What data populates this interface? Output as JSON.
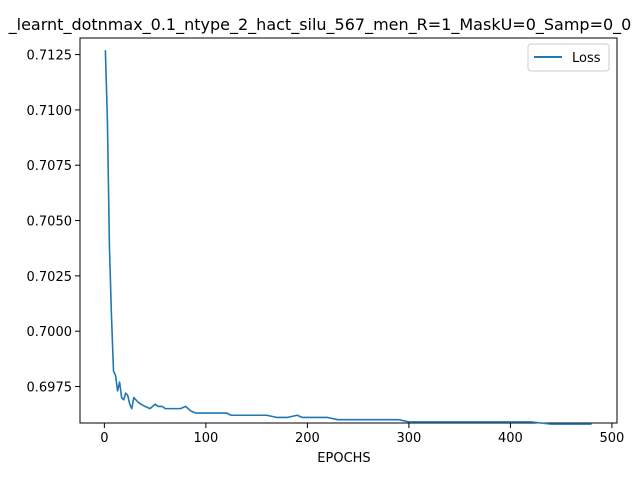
{
  "chart_data": {
    "type": "line",
    "title": "_learnt_dotnmax_0.1_ntype_2_hact_silu_567_men_R=1_MaskU=0_Samp=0_0",
    "xlabel": "EPOCHS",
    "ylabel": "",
    "xlim": [
      -24,
      505
    ],
    "ylim": [
      0.69585,
      0.71325
    ],
    "xticks": [
      0,
      100,
      200,
      300,
      400,
      500
    ],
    "yticks": [
      0.6975,
      0.7,
      0.7025,
      0.705,
      0.7075,
      0.71,
      0.7125
    ],
    "ytick_labels": [
      "0.6975",
      "0.7000",
      "0.7025",
      "0.7050",
      "0.7075",
      "0.7100",
      "0.7125"
    ],
    "grid": false,
    "legend_position": "top-right",
    "series": [
      {
        "name": "Loss",
        "color": "#1f77b4",
        "x": [
          1,
          3,
          5,
          7,
          9,
          11,
          13,
          15,
          17,
          19,
          21,
          23,
          25,
          27,
          29,
          31,
          33,
          36,
          40,
          45,
          50,
          53,
          57,
          60,
          65,
          70,
          75,
          80,
          85,
          90,
          95,
          100,
          105,
          110,
          115,
          120,
          125,
          130,
          135,
          140,
          145,
          150,
          155,
          160,
          170,
          180,
          190,
          195,
          210,
          220,
          230,
          240,
          250,
          260,
          270,
          280,
          290,
          300,
          320,
          340,
          360,
          380,
          400,
          420,
          440,
          460,
          480
        ],
        "y": [
          0.7127,
          0.7095,
          0.7038,
          0.7007,
          0.6982,
          0.698,
          0.6973,
          0.6977,
          0.697,
          0.6969,
          0.6972,
          0.6971,
          0.6967,
          0.6965,
          0.697,
          0.6969,
          0.6968,
          0.6967,
          0.6966,
          0.6965,
          0.6967,
          0.6966,
          0.6966,
          0.6965,
          0.6965,
          0.6965,
          0.6965,
          0.6966,
          0.6964,
          0.6963,
          0.6963,
          0.6963,
          0.6963,
          0.6963,
          0.6963,
          0.6963,
          0.6962,
          0.6962,
          0.6962,
          0.6962,
          0.6962,
          0.6962,
          0.6962,
          0.6962,
          0.6961,
          0.6961,
          0.6962,
          0.6961,
          0.6961,
          0.6961,
          0.696,
          0.696,
          0.696,
          0.696,
          0.696,
          0.696,
          0.696,
          0.6959,
          0.6959,
          0.6959,
          0.6959,
          0.6959,
          0.6959,
          0.6959,
          0.6958,
          0.6958,
          0.6958
        ]
      }
    ]
  }
}
